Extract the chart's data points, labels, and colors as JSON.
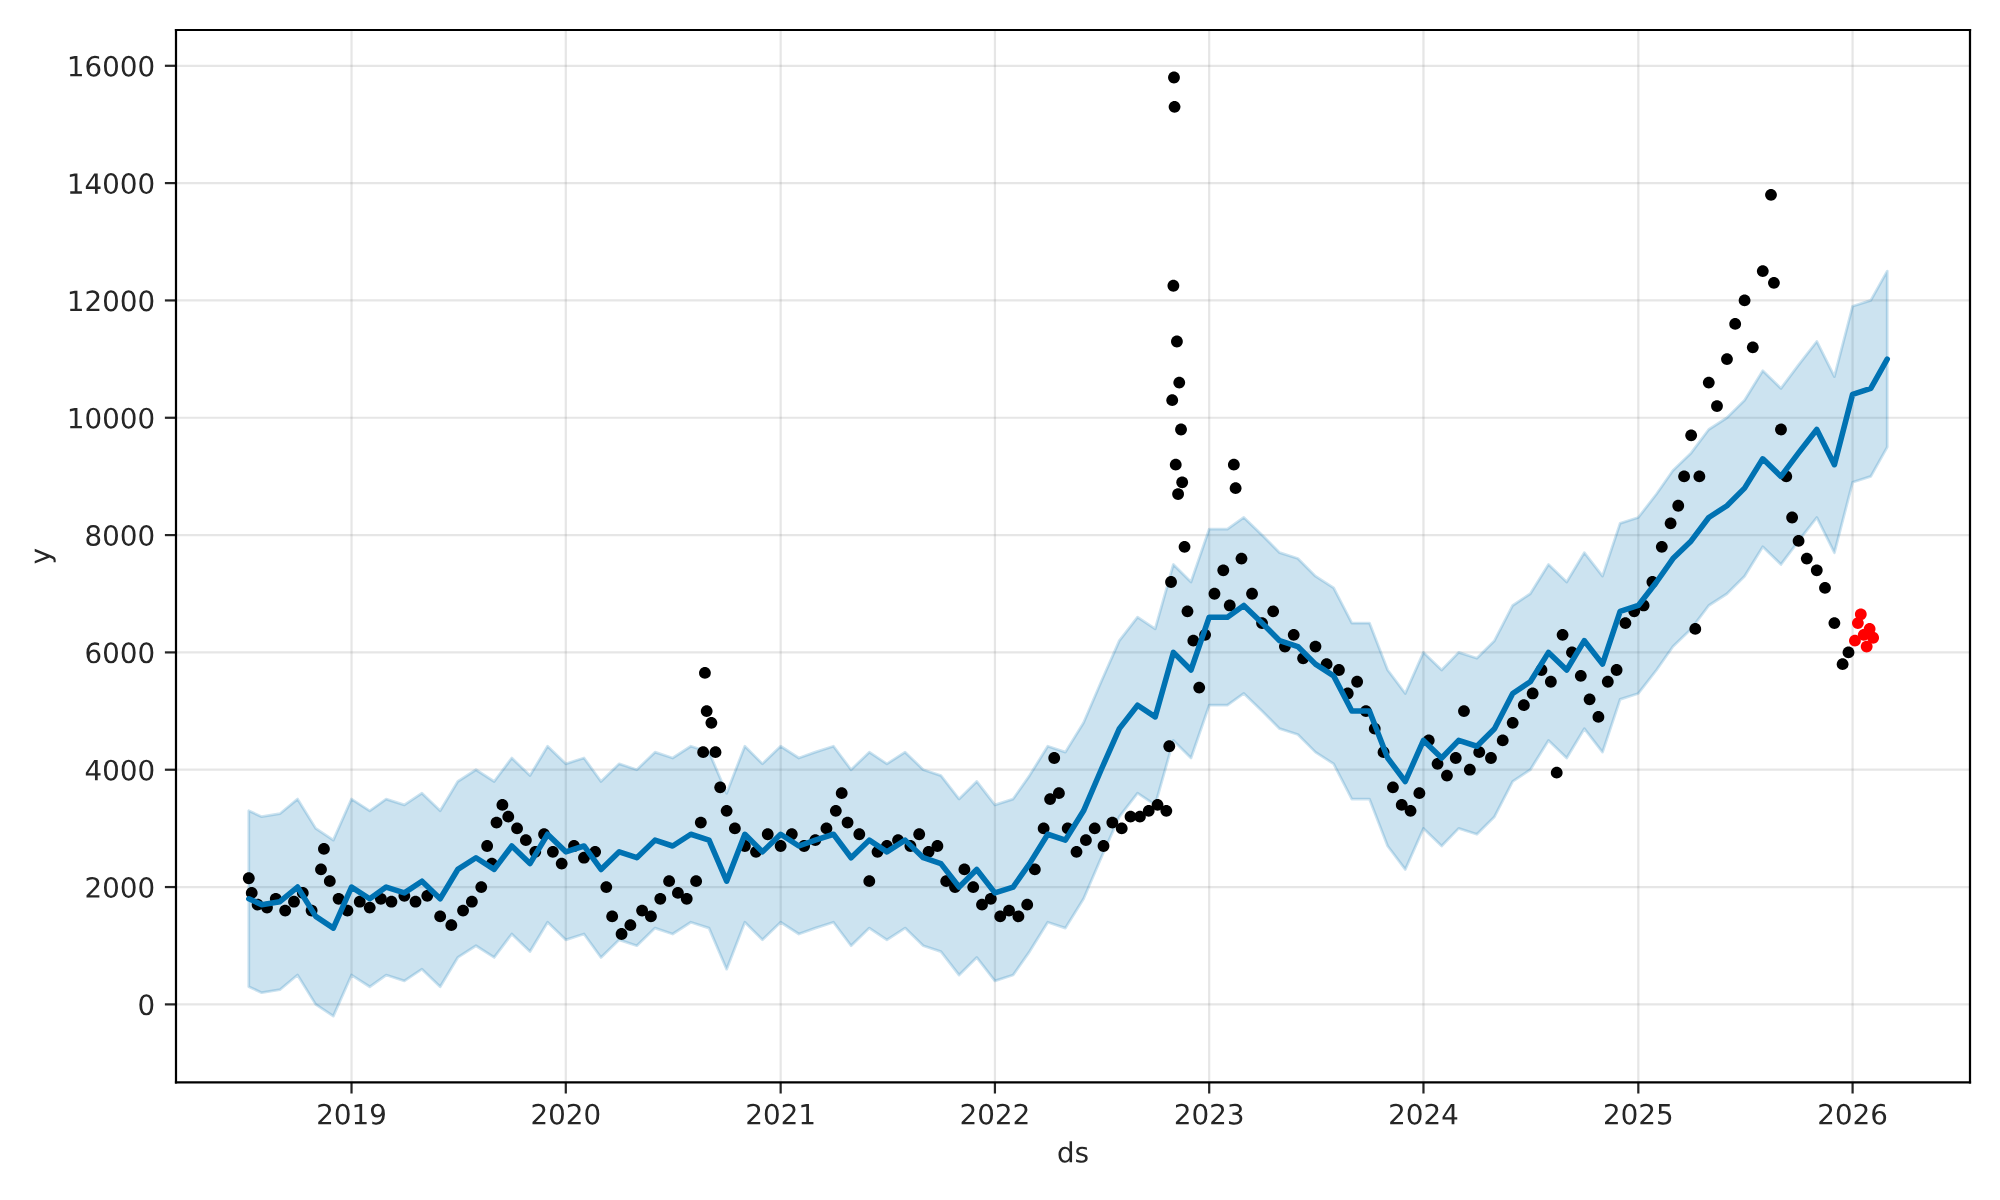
{
  "chart_data": {
    "type": "scatter",
    "xlabel": "ds",
    "ylabel": "y",
    "xlim": [
      "2018-03-08",
      "2026-07-20"
    ],
    "ylim": [
      -1330,
      16610
    ],
    "xticks": [
      {
        "value": "2019-01-01",
        "label": "2019"
      },
      {
        "value": "2020-01-01",
        "label": "2020"
      },
      {
        "value": "2021-01-01",
        "label": "2021"
      },
      {
        "value": "2022-01-01",
        "label": "2022"
      },
      {
        "value": "2023-01-01",
        "label": "2023"
      },
      {
        "value": "2024-01-01",
        "label": "2024"
      },
      {
        "value": "2025-01-01",
        "label": "2025"
      },
      {
        "value": "2026-01-01",
        "label": "2026"
      }
    ],
    "yticks": [
      0,
      2000,
      4000,
      6000,
      8000,
      10000,
      12000,
      14000,
      16000
    ],
    "grid": true,
    "marker": "circle",
    "series": [
      {
        "type": "line",
        "color": "#0072b2",
        "marker": "none",
        "x": [
          "2018-07-10",
          "2018-08-01",
          "2018-09-01",
          "2018-10-01",
          "2018-11-01",
          "2018-12-01",
          "2019-01-01",
          "2019-02-01",
          "2019-03-01",
          "2019-04-01",
          "2019-05-01",
          "2019-06-01",
          "2019-07-01",
          "2019-08-01",
          "2019-09-01",
          "2019-10-01",
          "2019-11-01",
          "2019-12-01",
          "2020-01-01",
          "2020-02-01",
          "2020-03-01",
          "2020-04-01",
          "2020-05-01",
          "2020-06-01",
          "2020-07-01",
          "2020-08-01",
          "2020-09-01",
          "2020-10-01",
          "2020-11-01",
          "2020-12-01",
          "2021-01-01",
          "2021-02-01",
          "2021-03-01",
          "2021-04-01",
          "2021-05-01",
          "2021-06-01",
          "2021-07-01",
          "2021-08-01",
          "2021-09-01",
          "2021-10-01",
          "2021-11-01",
          "2021-12-01",
          "2022-01-01",
          "2022-02-01",
          "2022-03-01",
          "2022-04-01",
          "2022-05-01",
          "2022-06-01",
          "2022-07-01",
          "2022-08-01",
          "2022-09-01",
          "2022-10-01",
          "2022-11-01",
          "2022-12-01",
          "2023-01-01",
          "2023-02-01",
          "2023-03-01",
          "2023-04-01",
          "2023-05-01",
          "2023-06-01",
          "2023-07-01",
          "2023-08-01",
          "2023-09-01",
          "2023-10-01",
          "2023-11-01",
          "2023-12-01",
          "2024-01-01",
          "2024-02-01",
          "2024-03-01",
          "2024-04-01",
          "2024-05-01",
          "2024-06-01",
          "2024-07-01",
          "2024-08-01",
          "2024-09-01",
          "2024-10-01",
          "2024-11-01",
          "2024-12-01",
          "2025-01-01",
          "2025-02-01",
          "2025-03-01",
          "2025-04-01",
          "2025-05-01",
          "2025-06-01",
          "2025-07-01",
          "2025-08-01",
          "2025-09-01",
          "2025-10-01",
          "2025-11-01",
          "2025-12-01",
          "2026-01-01",
          "2026-02-01",
          "2026-03-01"
        ],
        "values": [
          1800,
          1700,
          1750,
          2000,
          1500,
          1300,
          2000,
          1800,
          2000,
          1900,
          2100,
          1800,
          2300,
          2500,
          2300,
          2700,
          2400,
          2900,
          2600,
          2700,
          2300,
          2600,
          2500,
          2800,
          2700,
          2900,
          2800,
          2100,
          2900,
          2600,
          2900,
          2700,
          2800,
          2900,
          2500,
          2800,
          2600,
          2800,
          2500,
          2400,
          2000,
          2300,
          1900,
          2000,
          2400,
          2900,
          2800,
          3300,
          4000,
          4700,
          5100,
          4900,
          6000,
          5700,
          6600,
          6600,
          6800,
          6500,
          6200,
          6100,
          5800,
          5600,
          5000,
          5000,
          4200,
          3800,
          4500,
          4200,
          4500,
          4400,
          4700,
          5300,
          5500,
          6000,
          5700,
          6200,
          5800,
          6700,
          6800,
          7200,
          7600,
          7900,
          8300,
          8500,
          8800,
          9300,
          9000,
          9400,
          9800,
          9200,
          10400,
          10500,
          11000
        ],
        "lower": [
          300,
          200,
          250,
          500,
          0,
          -200,
          500,
          300,
          500,
          400,
          600,
          300,
          800,
          1000,
          800,
          1200,
          900,
          1400,
          1100,
          1200,
          800,
          1100,
          1000,
          1300,
          1200,
          1400,
          1300,
          600,
          1400,
          1100,
          1400,
          1200,
          1300,
          1400,
          1000,
          1300,
          1100,
          1300,
          1000,
          900,
          500,
          800,
          400,
          500,
          900,
          1400,
          1300,
          1800,
          2500,
          3200,
          3600,
          3400,
          4500,
          4200,
          5100,
          5100,
          5300,
          5000,
          4700,
          4600,
          4300,
          4100,
          3500,
          3500,
          2700,
          2300,
          3000,
          2700,
          3000,
          2900,
          3200,
          3800,
          4000,
          4500,
          4200,
          4700,
          4300,
          5200,
          5300,
          5700,
          6100,
          6400,
          6800,
          7000,
          7300,
          7800,
          7500,
          7900,
          8300,
          7700,
          8900,
          9000,
          9500
        ],
        "upper": [
          3300,
          3200,
          3250,
          3500,
          3000,
          2800,
          3500,
          3300,
          3500,
          3400,
          3600,
          3300,
          3800,
          4000,
          3800,
          4200,
          3900,
          4400,
          4100,
          4200,
          3800,
          4100,
          4000,
          4300,
          4200,
          4400,
          4300,
          3600,
          4400,
          4100,
          4400,
          4200,
          4300,
          4400,
          4000,
          4300,
          4100,
          4300,
          4000,
          3900,
          3500,
          3800,
          3400,
          3500,
          3900,
          4400,
          4300,
          4800,
          5500,
          6200,
          6600,
          6400,
          7500,
          7200,
          8100,
          8100,
          8300,
          8000,
          7700,
          7600,
          7300,
          7100,
          6500,
          6500,
          5700,
          5300,
          6000,
          5700,
          6000,
          5900,
          6200,
          6800,
          7000,
          7500,
          7200,
          7700,
          7300,
          8200,
          8300,
          8700,
          9100,
          9400,
          9800,
          10000,
          10300,
          10800,
          10500,
          10900,
          11300,
          10700,
          11900,
          12000,
          12500
        ]
      },
      {
        "color": "#000000",
        "x": [
          "2018-07-10",
          "2018-07-15",
          "2018-07-25",
          "2018-08-10",
          "2018-08-25",
          "2018-09-10",
          "2018-09-25",
          "2018-10-10",
          "2018-10-25",
          "2018-11-10",
          "2018-11-15",
          "2018-11-25",
          "2018-12-10",
          "2018-12-25",
          "2019-01-15",
          "2019-02-01",
          "2019-02-20",
          "2019-03-10",
          "2019-04-01",
          "2019-04-20",
          "2019-05-10",
          "2019-06-01",
          "2019-06-20",
          "2019-07-10",
          "2019-07-25",
          "2019-08-10",
          "2019-08-20",
          "2019-08-28",
          "2019-09-05",
          "2019-09-15",
          "2019-09-25",
          "2019-10-10",
          "2019-10-25",
          "2019-11-10",
          "2019-11-25",
          "2019-12-10",
          "2019-12-25",
          "2020-01-15",
          "2020-02-01",
          "2020-02-20",
          "2020-03-10",
          "2020-03-20",
          "2020-04-05",
          "2020-04-20",
          "2020-05-10",
          "2020-05-25",
          "2020-06-10",
          "2020-06-25",
          "2020-07-10",
          "2020-07-25",
          "2020-08-10",
          "2020-08-18",
          "2020-08-22",
          "2020-08-25",
          "2020-08-28",
          "2020-09-05",
          "2020-09-12",
          "2020-09-20",
          "2020-10-01",
          "2020-10-15",
          "2020-11-01",
          "2020-11-20",
          "2020-12-10",
          "2021-01-01",
          "2021-01-20",
          "2021-02-10",
          "2021-03-01",
          "2021-03-20",
          "2021-04-05",
          "2021-04-15",
          "2021-04-25",
          "2021-05-15",
          "2021-06-01",
          "2021-06-15",
          "2021-07-01",
          "2021-07-20",
          "2021-08-10",
          "2021-08-25",
          "2021-09-10",
          "2021-09-25",
          "2021-10-10",
          "2021-10-25",
          "2021-11-10",
          "2021-11-25",
          "2021-12-10",
          "2021-12-25",
          "2022-01-10",
          "2022-01-25",
          "2022-02-10",
          "2022-02-25",
          "2022-03-10",
          "2022-03-25",
          "2022-04-05",
          "2022-04-12",
          "2022-04-20",
          "2022-05-05",
          "2022-05-20",
          "2022-06-05",
          "2022-06-20",
          "2022-07-05",
          "2022-07-20",
          "2022-08-05",
          "2022-08-20",
          "2022-09-05",
          "2022-09-20",
          "2022-10-05",
          "2022-10-20",
          "2022-10-25",
          "2022-10-28",
          "2022-10-30",
          "2022-11-01",
          "2022-11-02",
          "2022-11-03",
          "2022-11-05",
          "2022-11-07",
          "2022-11-09",
          "2022-11-11",
          "2022-11-14",
          "2022-11-16",
          "2022-11-20",
          "2022-11-25",
          "2022-12-05",
          "2022-12-15",
          "2022-12-25",
          "2023-01-10",
          "2023-01-25",
          "2023-02-05",
          "2023-02-12",
          "2023-02-15",
          "2023-02-25",
          "2023-03-15",
          "2023-04-01",
          "2023-04-20",
          "2023-05-10",
          "2023-05-25",
          "2023-06-10",
          "2023-07-01",
          "2023-07-20",
          "2023-08-10",
          "2023-08-25",
          "2023-09-10",
          "2023-09-25",
          "2023-10-10",
          "2023-10-25",
          "2023-11-10",
          "2023-11-25",
          "2023-12-10",
          "2023-12-25",
          "2024-01-10",
          "2024-01-25",
          "2024-02-10",
          "2024-02-25",
          "2024-03-10",
          "2024-03-20",
          "2024-04-05",
          "2024-04-25",
          "2024-05-15",
          "2024-06-01",
          "2024-06-20",
          "2024-07-05",
          "2024-07-20",
          "2024-08-05",
          "2024-08-15",
          "2024-08-25",
          "2024-09-10",
          "2024-09-25",
          "2024-10-10",
          "2024-10-25",
          "2024-11-10",
          "2024-11-25",
          "2024-12-10",
          "2024-12-25",
          "2025-01-10",
          "2025-01-25",
          "2025-02-10",
          "2025-02-25",
          "2025-03-10",
          "2025-03-20",
          "2025-04-01",
          "2025-04-08",
          "2025-04-15",
          "2025-05-01",
          "2025-05-15",
          "2025-06-01",
          "2025-06-15",
          "2025-07-01",
          "2025-07-15",
          "2025-08-01",
          "2025-08-15",
          "2025-08-20",
          "2025-09-01",
          "2025-09-10",
          "2025-09-20",
          "2025-10-01",
          "2025-10-15",
          "2025-11-01",
          "2025-11-15",
          "2025-12-01",
          "2025-12-15",
          "2025-12-25"
        ],
        "values": [
          2150,
          1900,
          1700,
          1650,
          1800,
          1600,
          1750,
          1900,
          1600,
          2300,
          2650,
          2100,
          1800,
          1600,
          1750,
          1650,
          1800,
          1750,
          1850,
          1750,
          1850,
          1500,
          1350,
          1600,
          1750,
          2000,
          2700,
          2400,
          3100,
          3400,
          3200,
          3000,
          2800,
          2600,
          2900,
          2600,
          2400,
          2700,
          2500,
          2600,
          2000,
          1500,
          1200,
          1350,
          1600,
          1500,
          1800,
          2100,
          1900,
          1800,
          2100,
          3100,
          4300,
          5650,
          5000,
          4800,
          4300,
          3700,
          3300,
          3000,
          2700,
          2600,
          2900,
          2700,
          2900,
          2700,
          2800,
          3000,
          3300,
          3600,
          3100,
          2900,
          2100,
          2600,
          2700,
          2800,
          2700,
          2900,
          2600,
          2700,
          2100,
          2000,
          2300,
          2000,
          1700,
          1800,
          1500,
          1600,
          1500,
          1700,
          2300,
          3000,
          3500,
          4200,
          3600,
          3000,
          2600,
          2800,
          3000,
          2700,
          3100,
          3000,
          3200,
          3200,
          3300,
          3400,
          3300,
          4400,
          7200,
          10300,
          12250,
          15800,
          15300,
          9200,
          11300,
          8700,
          10600,
          9800,
          8900,
          7800,
          6700,
          6200,
          5400,
          6300,
          7000,
          7400,
          6800,
          9200,
          8800,
          7600,
          7000,
          6500,
          6700,
          6100,
          6300,
          5900,
          6100,
          5800,
          5700,
          5300,
          5500,
          5000,
          4700,
          4300,
          3700,
          3400,
          3300,
          3600,
          4500,
          4100,
          3900,
          4200,
          5000,
          4000,
          4300,
          4200,
          4500,
          4800,
          5100,
          5300,
          5700,
          5500,
          3950,
          6300,
          6000,
          5600,
          5200,
          4900,
          5500,
          5700,
          6500,
          6700,
          6800,
          7200,
          7800,
          8200,
          8500,
          9000,
          9700,
          6400,
          9000,
          10600,
          10200,
          11000,
          11600,
          12000,
          11200,
          12500,
          13800,
          12300,
          9800,
          9000,
          8300,
          7900,
          7600,
          7400,
          7100,
          6500,
          5800,
          6000
        ]
      },
      {
        "color": "#ff0000",
        "x": [
          "2026-01-05",
          "2026-01-10",
          "2026-01-15",
          "2026-01-20",
          "2026-01-25",
          "2026-01-30",
          "2026-02-05"
        ],
        "values": [
          6200,
          6500,
          6650,
          6300,
          6100,
          6400,
          6250
        ]
      }
    ]
  }
}
